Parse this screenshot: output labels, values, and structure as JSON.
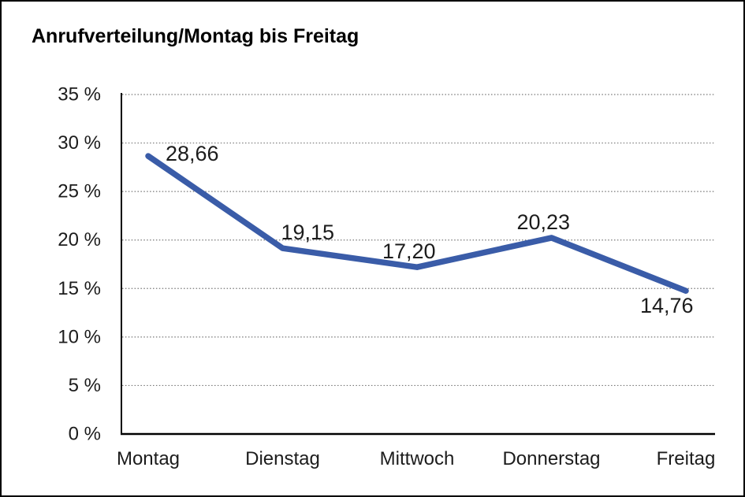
{
  "chart_data": {
    "type": "line",
    "title": "Anrufverteilung/Montag bis Freitag",
    "categories": [
      "Montag",
      "Dienstag",
      "Mittwoch",
      "Donnerstag",
      "Freitag"
    ],
    "values": [
      28.66,
      19.15,
      17.2,
      20.23,
      14.76
    ],
    "data_labels": [
      "28,66",
      "19,15",
      "17,20",
      "20,23",
      "14,76"
    ],
    "series_name": "Anrufverteilung",
    "xlabel": "",
    "ylabel": "",
    "ylim": [
      0,
      35
    ],
    "ytick_step": 5,
    "ytick_labels": [
      "0 %",
      "5 %",
      "10 %",
      "15 %",
      "20 %",
      "25 %",
      "30 %",
      "35 %"
    ],
    "grid": "horizontal-dotted",
    "legend": "none",
    "colors": {
      "line": "#3A5CA8",
      "axis": "#000000",
      "gridline": "#777777",
      "text": "#1c1c1c"
    }
  }
}
